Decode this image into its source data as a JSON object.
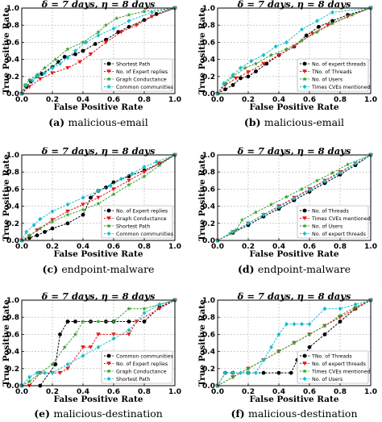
{
  "figure": {
    "captions": [
      {
        "letter": "(a)",
        "text": "malicious-email"
      },
      {
        "letter": "(b)",
        "text": "malicious-email"
      },
      {
        "letter": "(c)",
        "text": "endpoint-malware"
      },
      {
        "letter": "(d)",
        "text": "endpoint-malware"
      },
      {
        "letter": "(e)",
        "text": "malicious-destination"
      },
      {
        "letter": "(f)",
        "text": "malicious-destination"
      }
    ]
  },
  "chart_data": [
    {
      "type": "line",
      "title": "δ = 7 days, η = 8 days",
      "xlabel": "False Positive Rate",
      "ylabel": "True Positive Rate",
      "xlim": [
        0,
        1
      ],
      "ylim": [
        0,
        1
      ],
      "xticks": [
        "0.0",
        "0.2",
        "0.4",
        "0.6",
        "0.8",
        "1.0"
      ],
      "yticks": [
        "0.0",
        "0.2",
        "0.4",
        "0.6",
        "0.8",
        "1.0"
      ],
      "grid": true,
      "legend_position": "bottom-right",
      "series": [
        {
          "name": "Shortest Path",
          "color": "#000000",
          "marker": "circle",
          "x": [
            0,
            0.03,
            0.06,
            0.1,
            0.13,
            0.2,
            0.24,
            0.28,
            0.35,
            0.4,
            0.48,
            0.55,
            0.63,
            0.7,
            0.8,
            0.88,
            1.0
          ],
          "y": [
            0,
            0.08,
            0.14,
            0.2,
            0.23,
            0.31,
            0.37,
            0.43,
            0.46,
            0.5,
            0.58,
            0.63,
            0.72,
            0.78,
            0.86,
            0.93,
            1.0
          ]
        },
        {
          "name": "No. of Expert replies",
          "color": "#e31a1c",
          "marker": "triangle",
          "x": [
            0,
            0.05,
            0.12,
            0.2,
            0.3,
            0.38,
            0.45,
            0.55,
            0.65,
            0.75,
            0.85,
            1.0
          ],
          "y": [
            0,
            0.08,
            0.17,
            0.24,
            0.3,
            0.37,
            0.46,
            0.6,
            0.72,
            0.8,
            0.9,
            1.0
          ]
        },
        {
          "name": "Graph Conductance",
          "color": "#33a02c",
          "marker": "star",
          "x": [
            0,
            0.02,
            0.05,
            0.1,
            0.15,
            0.22,
            0.3,
            0.4,
            0.5,
            0.55,
            0.62,
            0.7,
            0.8,
            1.0
          ],
          "y": [
            0,
            0.1,
            0.16,
            0.22,
            0.3,
            0.4,
            0.52,
            0.6,
            0.72,
            0.8,
            0.88,
            0.92,
            0.96,
            1.0
          ]
        },
        {
          "name": "Common communities",
          "color": "#17becf",
          "marker": "diamond",
          "x": [
            0,
            0.03,
            0.07,
            0.1,
            0.15,
            0.2,
            0.25,
            0.3,
            0.35,
            0.42,
            0.5,
            0.6,
            0.7,
            0.85,
            1.0
          ],
          "y": [
            0,
            0.1,
            0.15,
            0.2,
            0.24,
            0.3,
            0.35,
            0.42,
            0.5,
            0.6,
            0.68,
            0.76,
            0.85,
            0.95,
            1.0
          ]
        }
      ]
    },
    {
      "type": "line",
      "title": "δ = 7 days, η = 8 days",
      "xlabel": "False Positive Rate",
      "ylabel": "True Positive Rate",
      "xlim": [
        0,
        1
      ],
      "ylim": [
        0,
        1
      ],
      "xticks": [
        "0.0",
        "0.2",
        "0.4",
        "0.6",
        "0.8",
        "1.0"
      ],
      "yticks": [
        "0.0",
        "0.2",
        "0.4",
        "0.6",
        "0.8",
        "1.0"
      ],
      "grid": true,
      "legend_position": "bottom-right",
      "series": [
        {
          "name": "No. of expert threads",
          "color": "#000000",
          "marker": "circle",
          "x": [
            0,
            0.05,
            0.1,
            0.15,
            0.2,
            0.25,
            0.32,
            0.4,
            0.5,
            0.58,
            0.66,
            0.75,
            0.85,
            1.0
          ],
          "y": [
            0,
            0.05,
            0.1,
            0.18,
            0.2,
            0.26,
            0.35,
            0.45,
            0.55,
            0.68,
            0.78,
            0.85,
            0.92,
            1.0
          ]
        },
        {
          "name": "TNo. of Threads",
          "color": "#e31a1c",
          "marker": "triangle",
          "x": [
            0,
            0.05,
            0.12,
            0.2,
            0.3,
            0.4,
            0.5,
            0.62,
            0.72,
            0.85,
            1.0
          ],
          "y": [
            0,
            0.1,
            0.18,
            0.25,
            0.35,
            0.45,
            0.55,
            0.7,
            0.8,
            0.9,
            1.0
          ]
        },
        {
          "name": "No. of Users",
          "color": "#33a02c",
          "marker": "star",
          "x": [
            0,
            0.05,
            0.1,
            0.18,
            0.25,
            0.35,
            0.45,
            0.55,
            0.65,
            0.75,
            0.88,
            1.0
          ],
          "y": [
            0,
            0.12,
            0.2,
            0.3,
            0.35,
            0.45,
            0.52,
            0.62,
            0.72,
            0.82,
            0.92,
            1.0
          ]
        },
        {
          "name": "Times CVEs mentioned",
          "color": "#17becf",
          "marker": "diamond",
          "x": [
            0,
            0.04,
            0.1,
            0.15,
            0.22,
            0.3,
            0.38,
            0.45,
            0.55,
            0.65,
            0.75,
            1.0
          ],
          "y": [
            0,
            0.12,
            0.22,
            0.3,
            0.38,
            0.45,
            0.55,
            0.6,
            0.75,
            0.85,
            0.95,
            1.0
          ]
        }
      ]
    },
    {
      "type": "line",
      "title": "δ = 7 days, η = 8 days",
      "xlabel": "False Positive Rate",
      "ylabel": "True Positive Rate",
      "xlim": [
        0,
        1
      ],
      "ylim": [
        0,
        1
      ],
      "xticks": [
        "0.0",
        "0.2",
        "0.4",
        "0.6",
        "0.8",
        "1.0"
      ],
      "yticks": [
        "0.0",
        "0.2",
        "0.4",
        "0.6",
        "0.8",
        "1.0"
      ],
      "grid": true,
      "legend_position": "bottom-right",
      "series": [
        {
          "name": "No. of Expert replies",
          "color": "#000000",
          "marker": "circle",
          "x": [
            0,
            0.05,
            0.1,
            0.15,
            0.2,
            0.3,
            0.4,
            0.45,
            0.5,
            0.55,
            0.6,
            0.7,
            0.8,
            0.9,
            1.0
          ],
          "y": [
            0,
            0.03,
            0.06,
            0.1,
            0.14,
            0.2,
            0.3,
            0.5,
            0.58,
            0.62,
            0.68,
            0.75,
            0.82,
            0.9,
            1.0
          ]
        },
        {
          "name": "Graph Conductance",
          "color": "#e31a1c",
          "marker": "triangle",
          "x": [
            0,
            0.05,
            0.1,
            0.2,
            0.3,
            0.4,
            0.5,
            0.6,
            0.7,
            0.8,
            0.9,
            1.0
          ],
          "y": [
            0,
            0.05,
            0.12,
            0.24,
            0.34,
            0.42,
            0.5,
            0.6,
            0.7,
            0.8,
            0.9,
            1.0
          ]
        },
        {
          "name": "Shortest Path",
          "color": "#33a02c",
          "marker": "star",
          "x": [
            0,
            0.05,
            0.12,
            0.2,
            0.3,
            0.4,
            0.5,
            0.6,
            0.7,
            0.8,
            0.9,
            1.0
          ],
          "y": [
            0,
            0.06,
            0.14,
            0.22,
            0.3,
            0.36,
            0.43,
            0.54,
            0.65,
            0.75,
            0.88,
            1.0
          ]
        },
        {
          "name": "Common communities",
          "color": "#17becf",
          "marker": "diamond",
          "x": [
            0,
            0.03,
            0.08,
            0.12,
            0.2,
            0.3,
            0.4,
            0.5,
            0.58,
            0.65,
            0.72,
            0.8,
            0.88,
            1.0
          ],
          "y": [
            0,
            0.1,
            0.18,
            0.25,
            0.34,
            0.42,
            0.5,
            0.58,
            0.64,
            0.72,
            0.78,
            0.86,
            0.92,
            1.0
          ]
        }
      ]
    },
    {
      "type": "line",
      "title": "δ = 7 days, η = 8 days",
      "xlabel": "False Positive Rate",
      "ylabel": "True Positive Rate",
      "xlim": [
        0,
        1
      ],
      "ylim": [
        0,
        1
      ],
      "xticks": [
        "0.0",
        "0.2",
        "0.4",
        "0.6",
        "0.8",
        "1.0"
      ],
      "yticks": [
        "0.0",
        "0.2",
        "0.4",
        "0.6",
        "0.8",
        "1.0"
      ],
      "grid": true,
      "legend_position": "bottom-right",
      "series": [
        {
          "name": "No. of Threads",
          "color": "#000000",
          "marker": "circle",
          "x": [
            0,
            0.1,
            0.2,
            0.3,
            0.4,
            0.5,
            0.6,
            0.7,
            0.8,
            0.9,
            1.0
          ],
          "y": [
            0,
            0.09,
            0.18,
            0.28,
            0.37,
            0.47,
            0.57,
            0.67,
            0.77,
            0.88,
            1.0
          ]
        },
        {
          "name": "Times CVEs mentioned",
          "color": "#e31a1c",
          "marker": "triangle",
          "x": [
            0,
            0.1,
            0.2,
            0.3,
            0.4,
            0.5,
            0.6,
            0.7,
            0.8,
            0.9,
            1.0
          ],
          "y": [
            0,
            0.1,
            0.2,
            0.3,
            0.4,
            0.5,
            0.6,
            0.7,
            0.8,
            0.9,
            1.0
          ]
        },
        {
          "name": "No. of Users",
          "color": "#33a02c",
          "marker": "star",
          "x": [
            0,
            0.08,
            0.12,
            0.16,
            0.25,
            0.35,
            0.45,
            0.55,
            0.65,
            0.75,
            0.85,
            1.0
          ],
          "y": [
            0,
            0.08,
            0.12,
            0.24,
            0.33,
            0.42,
            0.51,
            0.6,
            0.7,
            0.79,
            0.89,
            1.0
          ]
        },
        {
          "name": "No. of expert threads",
          "color": "#17becf",
          "marker": "diamond",
          "x": [
            0,
            0.1,
            0.2,
            0.3,
            0.4,
            0.5,
            0.6,
            0.7,
            0.8,
            0.9,
            1.0
          ],
          "y": [
            0,
            0.1,
            0.2,
            0.3,
            0.39,
            0.49,
            0.59,
            0.69,
            0.79,
            0.9,
            1.0
          ]
        }
      ]
    },
    {
      "type": "line",
      "title": "δ = 7 days, η = 8 days",
      "xlabel": "False Positive Rate",
      "ylabel": "True Positive Rate",
      "xlim": [
        0,
        1
      ],
      "ylim": [
        0,
        1
      ],
      "xticks": [
        "0.0",
        "0.2",
        "0.4",
        "0.6",
        "0.8",
        "1.0"
      ],
      "yticks": [
        "0.0",
        "0.2",
        "0.4",
        "0.6",
        "0.8",
        "1.0"
      ],
      "grid": true,
      "legend_position": "bottom-right",
      "series": [
        {
          "name": "Common communities",
          "color": "#000000",
          "marker": "circle",
          "x": [
            0,
            0.12,
            0.22,
            0.25,
            0.3,
            0.35,
            0.45,
            0.55,
            0.6,
            0.7,
            0.8,
            0.9,
            1.0
          ],
          "y": [
            0,
            0,
            0.25,
            0.6,
            0.75,
            0.75,
            0.75,
            0.75,
            0.75,
            0.75,
            0.75,
            0.92,
            1.0
          ]
        },
        {
          "name": "No. of Expert replies",
          "color": "#e31a1c",
          "marker": "triangle",
          "x": [
            0,
            0.05,
            0.12,
            0.2,
            0.25,
            0.3,
            0.4,
            0.45,
            0.5,
            0.6,
            0.7,
            0.75,
            0.9,
            1.0
          ],
          "y": [
            0,
            0,
            0.15,
            0.15,
            0.15,
            0.2,
            0.45,
            0.45,
            0.6,
            0.6,
            0.6,
            0.75,
            0.9,
            1.0
          ]
        },
        {
          "name": "Graph Conductance",
          "color": "#33a02c",
          "marker": "star",
          "x": [
            0,
            0.05,
            0.12,
            0.2,
            0.28,
            0.35,
            0.4,
            0.5,
            0.6,
            0.7,
            0.8,
            0.9,
            1.0
          ],
          "y": [
            0,
            0.05,
            0.15,
            0.25,
            0.45,
            0.6,
            0.75,
            0.75,
            0.75,
            0.9,
            0.9,
            0.95,
            1.0
          ]
        },
        {
          "name": "Shortest Path",
          "color": "#17becf",
          "marker": "diamond",
          "x": [
            0,
            0.05,
            0.1,
            0.15,
            0.2,
            0.3,
            0.4,
            0.5,
            0.6,
            0.7,
            0.8,
            0.9,
            1.0
          ],
          "y": [
            0,
            0.1,
            0.15,
            0.15,
            0.15,
            0.25,
            0.35,
            0.45,
            0.55,
            0.65,
            0.85,
            0.95,
            1.0
          ]
        }
      ]
    },
    {
      "type": "line",
      "title": "δ = 7 days, η = 8 days",
      "xlabel": "False Positive Rate",
      "ylabel": "True Positive Rate",
      "xlim": [
        0,
        1
      ],
      "ylim": [
        0,
        1
      ],
      "xticks": [
        "0.0",
        "0.2",
        "0.4",
        "0.6",
        "0.8",
        "1.0"
      ],
      "yticks": [
        "0.0",
        "0.2",
        "0.4",
        "0.6",
        "0.8",
        "1.0"
      ],
      "grid": true,
      "legend_position": "bottom-right",
      "series": [
        {
          "name": "TNo. of Threads",
          "color": "#000000",
          "marker": "circle",
          "x": [
            0,
            0.05,
            0.1,
            0.2,
            0.3,
            0.4,
            0.48,
            0.52,
            0.55,
            0.6,
            0.7,
            0.8,
            0.9,
            1.0
          ],
          "y": [
            0,
            0.15,
            0.15,
            0.15,
            0.15,
            0.15,
            0.15,
            0.3,
            0.3,
            0.45,
            0.6,
            0.75,
            0.9,
            1.0
          ]
        },
        {
          "name": "No. of expert threads",
          "color": "#e31a1c",
          "marker": "triangle",
          "x": [
            0,
            0.1,
            0.2,
            0.3,
            0.4,
            0.5,
            0.6,
            0.7,
            0.8,
            0.9,
            1.0
          ],
          "y": [
            0,
            0.1,
            0.2,
            0.3,
            0.4,
            0.5,
            0.6,
            0.7,
            0.8,
            0.9,
            1.0
          ]
        },
        {
          "name": "Times CVEs mentioned",
          "color": "#33a02c",
          "marker": "star",
          "x": [
            0,
            0.1,
            0.2,
            0.3,
            0.4,
            0.5,
            0.6,
            0.7,
            0.8,
            0.9,
            1.0
          ],
          "y": [
            0,
            0.1,
            0.2,
            0.3,
            0.4,
            0.5,
            0.6,
            0.7,
            0.82,
            0.92,
            1.0
          ]
        },
        {
          "name": "No. of Users",
          "color": "#17becf",
          "marker": "diamond",
          "x": [
            0,
            0.05,
            0.1,
            0.15,
            0.2,
            0.25,
            0.3,
            0.35,
            0.4,
            0.45,
            0.5,
            0.55,
            0.6,
            0.7,
            0.8,
            0.9,
            1.0
          ],
          "y": [
            0,
            0.15,
            0.15,
            0.15,
            0.15,
            0.15,
            0.3,
            0.45,
            0.6,
            0.72,
            0.72,
            0.72,
            0.72,
            0.9,
            0.9,
            0.95,
            1.0
          ]
        }
      ]
    }
  ]
}
